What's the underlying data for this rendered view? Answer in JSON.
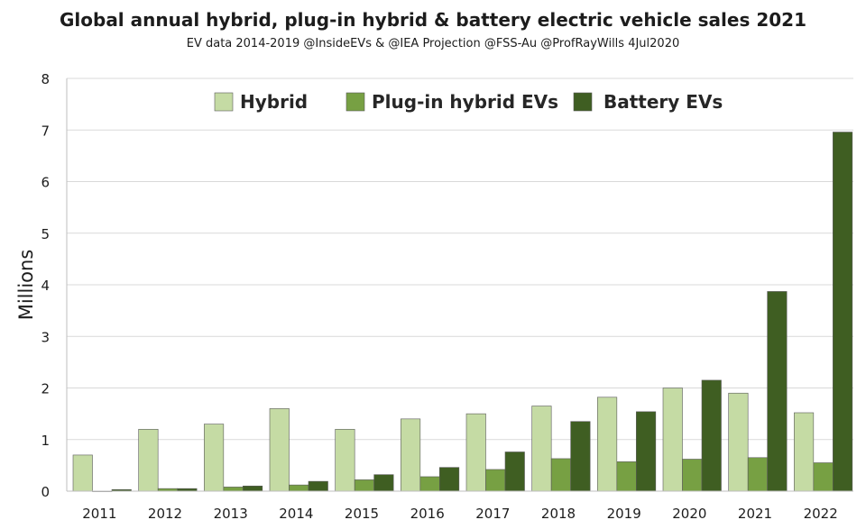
{
  "title": "Global annual hybrid, plug-in hybrid & battery electric vehicle sales 2021",
  "subtitle": "EV data 2014-2019 @InsideEVs & @IEA  Projection @FSS-Au @ProfRayWills 4Jul2020",
  "chart_data": {
    "type": "bar",
    "title": "Global annual hybrid, plug-in hybrid & battery electric vehicle sales 2021",
    "xlabel": "",
    "ylabel": "Millions",
    "ylim": [
      0,
      8
    ],
    "yticks": [
      "0",
      "1",
      "2",
      "3",
      "4",
      "5",
      "6",
      "7",
      "8"
    ],
    "grid": true,
    "legend_position": "top",
    "categories": [
      "2011",
      "2012",
      "2013",
      "2014",
      "2015",
      "2016",
      "2017",
      "2018",
      "2019",
      "2020",
      "2021",
      "2022"
    ],
    "series": [
      {
        "name": "Hybrid",
        "color": "#c5dba4",
        "values": [
          0.7,
          1.2,
          1.3,
          1.6,
          1.2,
          1.4,
          1.5,
          1.65,
          1.82,
          2.0,
          1.9,
          1.52
        ]
      },
      {
        "name": "Plug-in hybrid EVs",
        "color": "#77a043",
        "values": [
          0.0,
          0.05,
          0.08,
          0.12,
          0.22,
          0.28,
          0.42,
          0.63,
          0.57,
          0.62,
          0.65,
          0.55
        ]
      },
      {
        "name": "Battery EVs",
        "color": "#3f5e22",
        "values": [
          0.03,
          0.05,
          0.1,
          0.19,
          0.32,
          0.46,
          0.76,
          1.35,
          1.54,
          2.15,
          3.87,
          6.96
        ]
      }
    ]
  }
}
